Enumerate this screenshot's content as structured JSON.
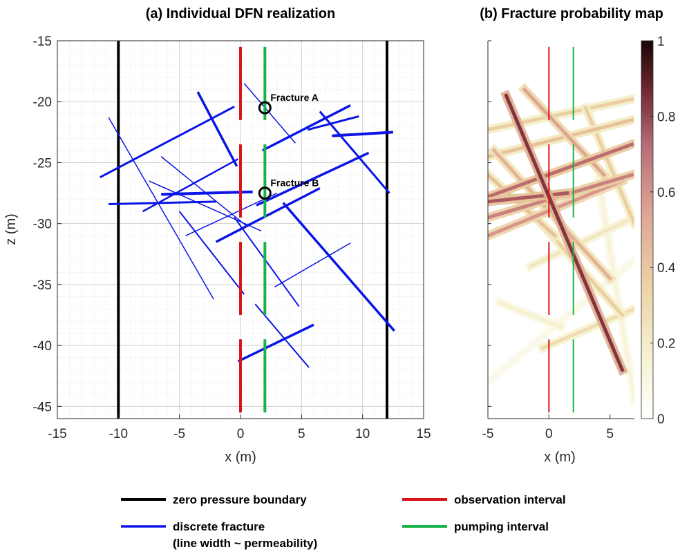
{
  "colors": {
    "boundary": "#000000",
    "fracture": "#0a14e6",
    "observation": "#d9141b",
    "pumping": "#19b34a",
    "grid": "#d9d9d9",
    "axis": "#262626"
  },
  "legend": {
    "boundary": "zero pressure boundary",
    "fracture_line1": "discrete fracture",
    "fracture_line2": "(line width ~ permeability)",
    "observation": "observation interval",
    "pumping": "pumping interval"
  },
  "chart_data": [
    {
      "type": "line",
      "title": "(a) Individual DFN realization",
      "xlabel": "x (m)",
      "ylabel": "z (m)",
      "xlim": [
        -15,
        15
      ],
      "ylim": [
        -46,
        -15
      ],
      "xticks": [
        "-15",
        "-10",
        "-5",
        "0",
        "5",
        "10",
        "15"
      ],
      "yticks": [
        "-15",
        "-20",
        "-25",
        "-30",
        "-35",
        "-40",
        "-45"
      ],
      "grid": true,
      "legend_position": "bottom",
      "boundaries": [
        {
          "x": -10,
          "z": [
            -46,
            -15
          ]
        },
        {
          "x": 12,
          "z": [
            -46,
            -15
          ]
        }
      ],
      "observation_intervals": [
        {
          "x": 0,
          "z": [
            -21.5,
            -15.5
          ]
        },
        {
          "x": 0,
          "z": [
            -29.5,
            -23.5
          ]
        },
        {
          "x": 0,
          "z": [
            -37.5,
            -31.5
          ]
        },
        {
          "x": 0,
          "z": [
            -45.5,
            -39.5
          ]
        }
      ],
      "pumping_intervals": [
        {
          "x": 2,
          "z": [
            -21.5,
            -15.5
          ]
        },
        {
          "x": 2,
          "z": [
            -29.5,
            -23.5
          ]
        },
        {
          "x": 2,
          "z": [
            -37.5,
            -31.5
          ]
        },
        {
          "x": 2,
          "z": [
            -45.5,
            -39.5
          ]
        }
      ],
      "fractures": [
        {
          "x": [
            -11.5,
            -0.5
          ],
          "z": [
            -26.2,
            -20.4
          ],
          "width": 3
        },
        {
          "x": [
            -3.5,
            -0.3
          ],
          "z": [
            -19.2,
            -25.3
          ],
          "width": 3.5
        },
        {
          "x": [
            -7.5,
            1.7
          ],
          "z": [
            -26.5,
            -30.6
          ],
          "width": 1.5
        },
        {
          "x": [
            -10.8,
            -2.2
          ],
          "z": [
            -21.3,
            -36.2
          ],
          "width": 1.5
        },
        {
          "x": [
            0.3,
            4.5
          ],
          "z": [
            -18.5,
            -23.4
          ],
          "width": 1.5
        },
        {
          "x": [
            1.8,
            9.0
          ],
          "z": [
            -24.0,
            -20.3
          ],
          "width": 3.5
        },
        {
          "x": [
            5.5,
            9.7
          ],
          "z": [
            -22.3,
            -21.2
          ],
          "width": 3
        },
        {
          "x": [
            6.5,
            12.2
          ],
          "z": [
            -20.8,
            -27.5
          ],
          "width": 3
        },
        {
          "x": [
            7.5,
            12.5
          ],
          "z": [
            -22.8,
            -22.5
          ],
          "width": 4
        },
        {
          "x": [
            -6.5,
            1.0
          ],
          "z": [
            -27.6,
            -27.4
          ],
          "width": 4
        },
        {
          "x": [
            -10.8,
            -2.0
          ],
          "z": [
            -28.4,
            -28.2
          ],
          "width": 3
        },
        {
          "x": [
            -8.0,
            -0.2
          ],
          "z": [
            -29.0,
            -24.7
          ],
          "width": 2.5
        },
        {
          "x": [
            -6.5,
            0.5
          ],
          "z": [
            -24.5,
            -30.2
          ],
          "width": 1.5
        },
        {
          "x": [
            -4.5,
            3.0
          ],
          "z": [
            -31.0,
            -27.5
          ],
          "width": 1.5
        },
        {
          "x": [
            1.3,
            10.5
          ],
          "z": [
            -28.5,
            -24.2
          ],
          "width": 3.5
        },
        {
          "x": [
            -2.0,
            6.5
          ],
          "z": [
            -31.5,
            -27.1
          ],
          "width": 3.5
        },
        {
          "x": [
            3.5,
            12.6
          ],
          "z": [
            -28.3,
            -38.8
          ],
          "width": 3.5
        },
        {
          "x": [
            -5.0,
            0.3
          ],
          "z": [
            -29.0,
            -35.8
          ],
          "width": 2
        },
        {
          "x": [
            -0.5,
            4.8
          ],
          "z": [
            -29.5,
            -36.8
          ],
          "width": 2
        },
        {
          "x": [
            2.8,
            9.0
          ],
          "z": [
            -35.2,
            -31.6
          ],
          "width": 1.5
        },
        {
          "x": [
            1.2,
            5.6
          ],
          "z": [
            -36.6,
            -41.8
          ],
          "width": 2
        },
        {
          "x": [
            -0.2,
            6.0
          ],
          "z": [
            -41.3,
            -38.3
          ],
          "width": 3.5
        }
      ],
      "annotations": [
        {
          "label": "Fracture A",
          "x": 2,
          "z": -20.5
        },
        {
          "label": "Fracture B",
          "x": 2,
          "z": -27.5
        }
      ]
    },
    {
      "type": "heatmap",
      "title": "(b) Fracture probability map",
      "xlabel": "x (m)",
      "xlim": [
        -5,
        7
      ],
      "ylim": [
        -46,
        -15
      ],
      "xticks": [
        "-5",
        "0",
        "5"
      ],
      "colorbar_ticks": [
        "0",
        "0.2",
        "0.4",
        "0.6",
        "0.8",
        "1"
      ],
      "colorbar_range": [
        0,
        1
      ],
      "colormap": [
        "#ffffff",
        "#f5f0c8",
        "#e8c79a",
        "#d9968c",
        "#a8505a",
        "#5c1a1f",
        "#1a0505"
      ],
      "observation_intervals": [
        {
          "x": 0,
          "z": [
            -21.5,
            -15.5
          ]
        },
        {
          "x": 0,
          "z": [
            -29.5,
            -23.5
          ]
        },
        {
          "x": 0,
          "z": [
            -37.5,
            -31.5
          ]
        },
        {
          "x": 0,
          "z": [
            -45.5,
            -39.5
          ]
        }
      ],
      "pumping_intervals": [
        {
          "x": 2,
          "z": [
            -21.5,
            -15.5
          ]
        },
        {
          "x": 2,
          "z": [
            -29.5,
            -23.5
          ]
        },
        {
          "x": 2,
          "z": [
            -37.5,
            -31.5
          ]
        },
        {
          "x": 2,
          "z": [
            -45.5,
            -39.5
          ]
        }
      ],
      "probability_bands": [
        {
          "x": [
            -3.5,
            6.0
          ],
          "z": [
            -19.5,
            -42.0
          ],
          "p": 0.75
        },
        {
          "x": [
            -5.0,
            6.8
          ],
          "z": [
            -22.3,
            -19.8
          ],
          "p": 0.3
        },
        {
          "x": [
            -5.0,
            6.8
          ],
          "z": [
            -24.5,
            -21.5
          ],
          "p": 0.35
        },
        {
          "x": [
            -5.0,
            6.8
          ],
          "z": [
            -27.8,
            -23.5
          ],
          "p": 0.6
        },
        {
          "x": [
            -5.0,
            6.8
          ],
          "z": [
            -29.5,
            -26.0
          ],
          "p": 0.55
        },
        {
          "x": [
            -5.0,
            6.0
          ],
          "z": [
            -31.0,
            -26.5
          ],
          "p": 0.5
        },
        {
          "x": [
            -5.0,
            1.5
          ],
          "z": [
            -28.2,
            -27.5
          ],
          "p": 0.65
        },
        {
          "x": [
            -4.5,
            5.0
          ],
          "z": [
            -24.0,
            -34.5
          ],
          "p": 0.4
        },
        {
          "x": [
            -5.0,
            0.5
          ],
          "z": [
            -26.0,
            -31.0
          ],
          "p": 0.35
        },
        {
          "x": [
            -2.0,
            4.5
          ],
          "z": [
            -19.0,
            -26.0
          ],
          "p": 0.45
        },
        {
          "x": [
            3.0,
            7.0
          ],
          "z": [
            -20.5,
            -30.0
          ],
          "p": 0.3
        },
        {
          "x": [
            -1.5,
            7.0
          ],
          "z": [
            -33.5,
            -29.5
          ],
          "p": 0.2
        },
        {
          "x": [
            -0.5,
            7.0
          ],
          "z": [
            -40.2,
            -37.0
          ],
          "p": 0.25
        },
        {
          "x": [
            -5.0,
            7.0
          ],
          "z": [
            -43.0,
            -33.0
          ],
          "p": 0.08
        },
        {
          "x": [
            4.0,
            7.0
          ],
          "z": [
            -26.0,
            -44.5
          ],
          "p": 0.12
        },
        {
          "x": [
            -1.5,
            6.0
          ],
          "z": [
            -29.0,
            -37.5
          ],
          "p": 0.3
        },
        {
          "x": [
            -4.0,
            1.0
          ],
          "z": [
            -36.5,
            -38.5
          ],
          "p": 0.15
        }
      ]
    }
  ]
}
